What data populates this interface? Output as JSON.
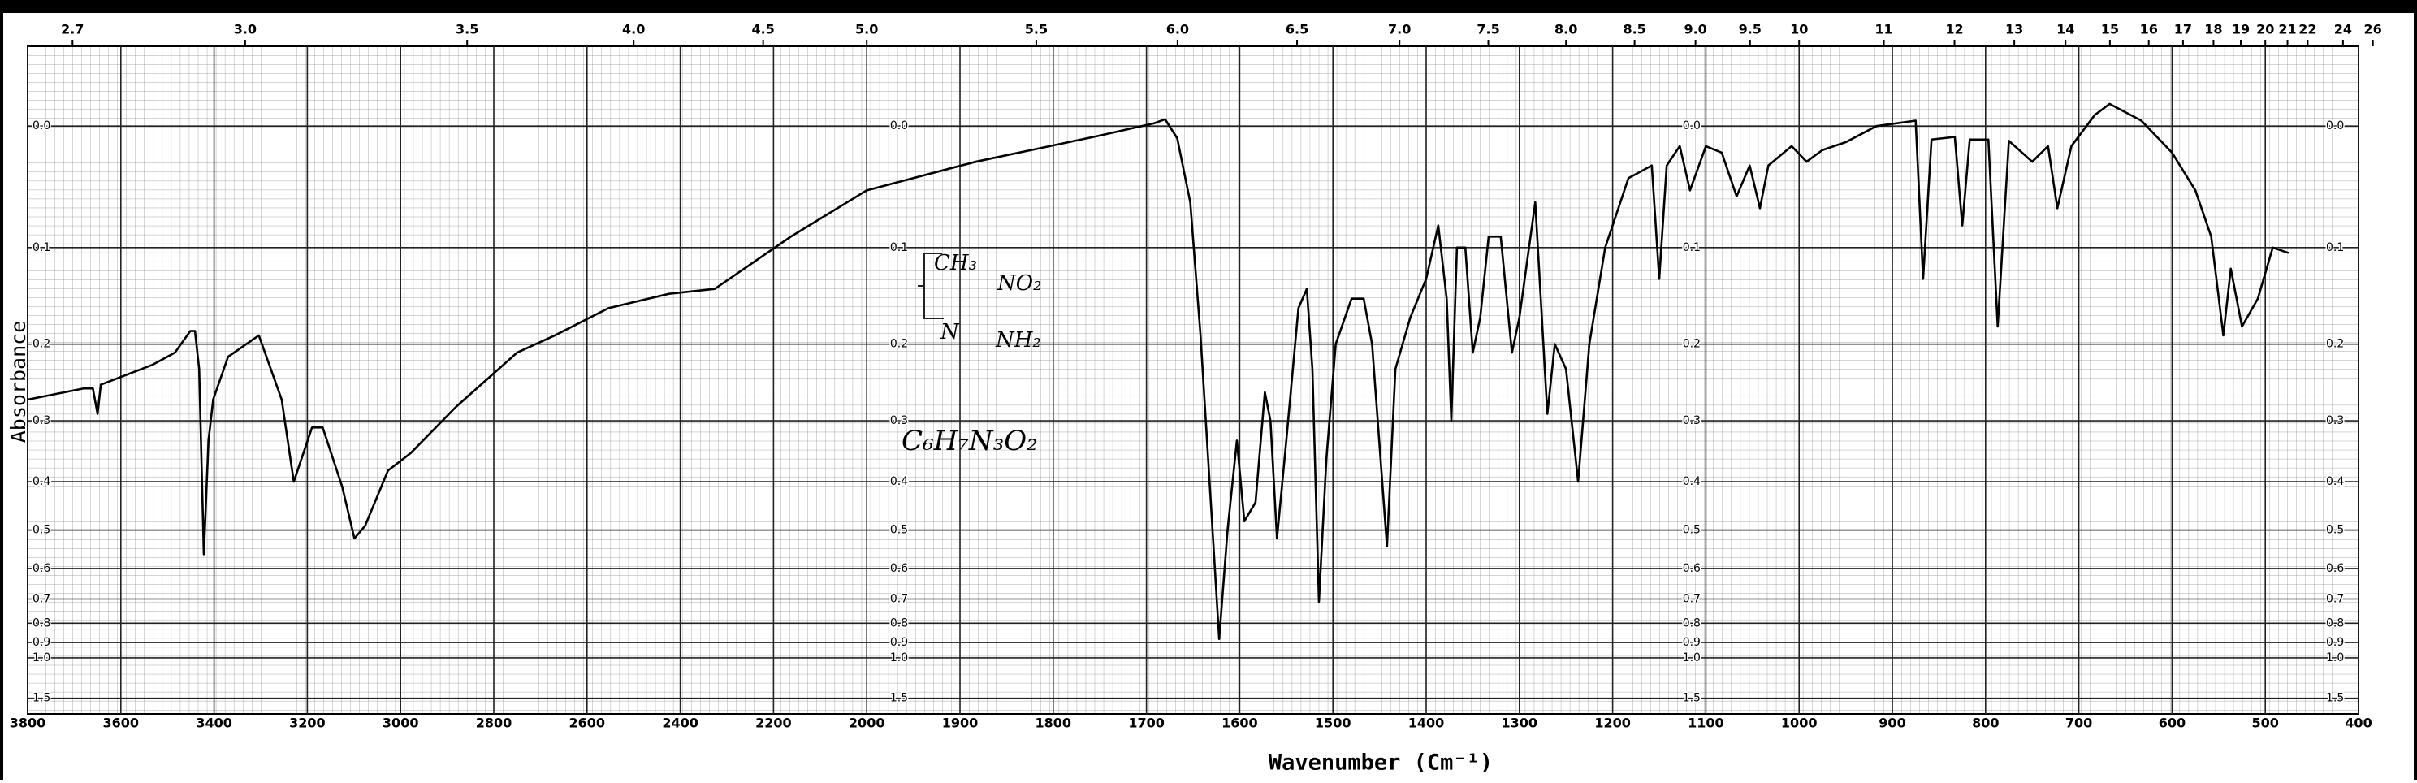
{
  "chart_data": {
    "type": "line",
    "x_label": "Wavenumber (Cm⁻¹)",
    "y_label": "Absorbance",
    "yscale": "transmittance",
    "grid": true,
    "color": "#000000",
    "annotations": [
      "CH₃",
      "NO₂",
      "N",
      "NH₂",
      "C₆H₇N₃O₂"
    ],
    "xlim": [
      3800,
      400
    ],
    "xticks": [
      3800,
      3600,
      3400,
      3200,
      3000,
      2800,
      2600,
      2400,
      2200,
      2000,
      1900,
      1800,
      1700,
      1600,
      1500,
      1400,
      1300,
      1200,
      1100,
      1000,
      900,
      800,
      700,
      600,
      500,
      400
    ],
    "x2ticks": [
      2.7,
      {
        "value": 3,
        "label": "3.0"
      },
      3.5,
      {
        "value": 4,
        "label": "4.0"
      },
      4.5,
      {
        "value": 5,
        "label": "5.0"
      },
      5.5,
      {
        "value": 6,
        "label": "6.0"
      },
      6.5,
      {
        "value": 7,
        "label": "7.0"
      },
      7.5,
      {
        "value": 8,
        "label": "8.0"
      },
      8.5,
      {
        "value": 9,
        "label": "9.0"
      },
      9.5,
      10,
      11,
      12,
      13,
      14,
      15,
      16,
      17,
      18,
      19,
      20,
      21,
      22,
      24,
      26
    ],
    "ylim": [
      2.3,
      -0.055
    ],
    "yticks": [
      {
        "value": 0,
        "label": "0.0"
      },
      0.1,
      0.2,
      0.3,
      0.4,
      0.5,
      0.6,
      0.7,
      0.8,
      0.9,
      {
        "value": 1,
        "label": "1.0"
      },
      1.5
    ],
    "x": [
      3800,
      3680,
      3660,
      3650,
      3643,
      3533,
      3484,
      3451,
      3441,
      3432,
      3422,
      3412,
      3402,
      3370,
      3304,
      3255,
      3229,
      3190,
      3167,
      3125,
      3099,
      3076,
      3027,
      2978,
      2881,
      2750,
      2669,
      2554,
      2424,
      2326,
      2163,
      2000,
      1950,
      1883,
      1817,
      1750,
      1692,
      1680,
      1667,
      1653,
      1642,
      1630,
      1622,
      1613,
      1603,
      1595,
      1583,
      1573,
      1567,
      1560,
      1550,
      1537,
      1528,
      1522,
      1515,
      1507,
      1497,
      1480,
      1467,
      1458,
      1442,
      1433,
      1417,
      1400,
      1387,
      1378,
      1373,
      1367,
      1358,
      1350,
      1342,
      1333,
      1320,
      1308,
      1300,
      1283,
      1270,
      1262,
      1250,
      1237,
      1225,
      1208,
      1183,
      1158,
      1150,
      1142,
      1128,
      1117,
      1100,
      1083,
      1067,
      1053,
      1042,
      1033,
      1008,
      992,
      975,
      950,
      917,
      875,
      867,
      858,
      833,
      825,
      817,
      797,
      787,
      775,
      750,
      733,
      723,
      708,
      683,
      667,
      633,
      600,
      575,
      558,
      545,
      537,
      525,
      508,
      492,
      475
    ],
    "values": [
      0.27,
      0.255,
      0.255,
      0.29,
      0.25,
      0.225,
      0.21,
      0.185,
      0.185,
      0.23,
      0.56,
      0.33,
      0.27,
      0.215,
      0.19,
      0.27,
      0.4,
      0.31,
      0.31,
      0.41,
      0.52,
      0.49,
      0.38,
      0.35,
      0.28,
      0.21,
      0.19,
      0.16,
      0.145,
      0.14,
      0.09,
      0.05,
      0.04,
      0.027,
      0.017,
      0.007,
      -0.002,
      -0.005,
      0.009,
      0.06,
      0.19,
      0.47,
      0.88,
      0.5,
      0.33,
      0.48,
      0.44,
      0.26,
      0.3,
      0.52,
      0.33,
      0.16,
      0.14,
      0.23,
      0.71,
      0.36,
      0.2,
      0.15,
      0.15,
      0.2,
      0.54,
      0.23,
      0.17,
      0.13,
      0.08,
      0.15,
      0.3,
      0.1,
      0.1,
      0.21,
      0.17,
      0.09,
      0.09,
      0.21,
      0.17,
      0.06,
      0.29,
      0.2,
      0.23,
      0.4,
      0.2,
      0.1,
      0.04,
      0.03,
      0.13,
      0.03,
      0.015,
      0.05,
      0.015,
      0.02,
      0.055,
      0.03,
      0.065,
      0.03,
      0.015,
      0.027,
      0.018,
      0.012,
      0.0,
      -0.004,
      0.13,
      0.01,
      0.008,
      0.08,
      0.01,
      0.01,
      0.18,
      0.011,
      0.027,
      0.015,
      0.065,
      0.015,
      -0.008,
      -0.016,
      -0.004,
      0.02,
      0.05,
      0.09,
      0.19,
      0.12,
      0.18,
      0.15,
      0.1,
      0.105
    ]
  }
}
